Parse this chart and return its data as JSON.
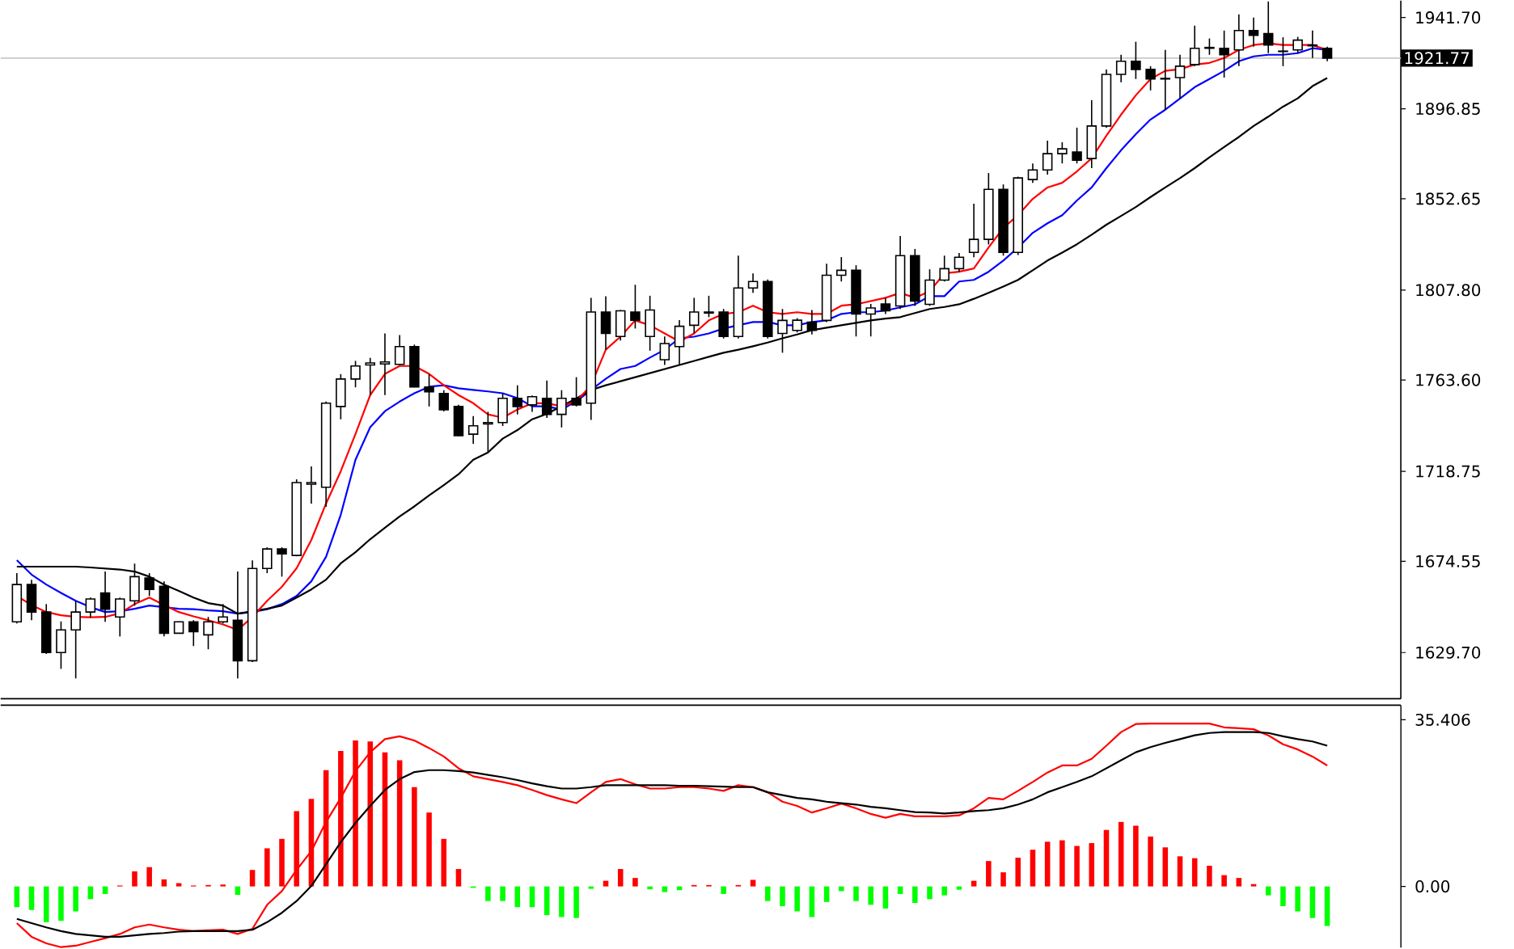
{
  "chart_data": [
    {
      "type": "candlestick",
      "tick_labels": "y",
      "categories": [
        null,
        null,
        null,
        null,
        null,
        null,
        null,
        null,
        null,
        null,
        null,
        null,
        null,
        null,
        null,
        null,
        null,
        null,
        null,
        null,
        null,
        null,
        null,
        null,
        null,
        null,
        null,
        null,
        null,
        null,
        null,
        null,
        null,
        null,
        null,
        null,
        null,
        null,
        null,
        null,
        null,
        null,
        null,
        null,
        null,
        null,
        null,
        null,
        null,
        null,
        null,
        null,
        null,
        null,
        null,
        null,
        null,
        null,
        null,
        null,
        null,
        null,
        null,
        null,
        null,
        null,
        null,
        null,
        null,
        null,
        null,
        null,
        null,
        null,
        null,
        null,
        null,
        null,
        null,
        null,
        null,
        null,
        null,
        null,
        null,
        null,
        null,
        null,
        null,
        null
      ],
      "ohlc": [
        [
          1644.8,
          1668.7,
          1644,
          1663.1
        ],
        [
          1663.1,
          1665.5,
          1645.6,
          1649.6
        ],
        [
          1649.6,
          1653.5,
          1629,
          1629.7
        ],
        [
          1629.7,
          1645,
          1621.7,
          1640.8
        ],
        [
          1640.8,
          1655,
          1617,
          1649.6
        ],
        [
          1649.6,
          1656.7,
          1647,
          1656
        ],
        [
          1659,
          1669.5,
          1644.8,
          1651
        ],
        [
          1647.2,
          1656.7,
          1637.6,
          1656
        ],
        [
          1655.1,
          1673.4,
          1652.7,
          1667
        ],
        [
          1666.3,
          1668.7,
          1657.5,
          1660.7
        ],
        [
          1662.3,
          1664.7,
          1637.6,
          1639.2
        ],
        [
          1639.2,
          1645,
          1639,
          1644.8
        ],
        [
          1644.8,
          1645.6,
          1632.9,
          1640
        ],
        [
          1638.4,
          1647.2,
          1631.3,
          1644.8
        ],
        [
          1644.8,
          1653.5,
          1644,
          1647.2
        ],
        [
          1645.6,
          1669.5,
          1617,
          1625.7
        ],
        [
          1625.7,
          1675,
          1625,
          1671
        ],
        [
          1671,
          1681.4,
          1668.7,
          1680.6
        ],
        [
          1680.6,
          1681.4,
          1667,
          1678.2
        ],
        [
          1677.4,
          1714.8,
          1677,
          1713.2
        ],
        [
          1712.4,
          1721.2,
          1702.9,
          1713.2
        ],
        [
          1710.9,
          1753,
          1701.3,
          1752.2
        ],
        [
          1750.6,
          1766.5,
          1744.3,
          1764.1
        ],
        [
          1764.1,
          1773,
          1760,
          1770.5
        ],
        [
          1771,
          1774.5,
          1756.2,
          1772
        ],
        [
          1771.5,
          1786.5,
          1756.2,
          1772.5
        ],
        [
          1771.3,
          1785.7,
          1771,
          1780
        ],
        [
          1780,
          1781,
          1760,
          1760.2
        ],
        [
          1760.2,
          1766.5,
          1750.6,
          1757.8
        ],
        [
          1757,
          1758.6,
          1748.2,
          1749
        ],
        [
          1750.6,
          1751.4,
          1736,
          1736.3
        ],
        [
          1737,
          1745.9,
          1732.3,
          1741.1
        ],
        [
          1742,
          1748,
          1728,
          1742.7
        ],
        [
          1742.7,
          1757,
          1741,
          1754.6
        ],
        [
          1754.6,
          1761,
          1746.7,
          1750.6
        ],
        [
          1751.4,
          1756,
          1748,
          1755.4
        ],
        [
          1754.6,
          1763.3,
          1745,
          1746.7
        ],
        [
          1746.7,
          1758.6,
          1740.3,
          1754.6
        ],
        [
          1754.6,
          1765,
          1750.6,
          1751.4
        ],
        [
          1752.2,
          1804,
          1744,
          1797
        ],
        [
          1797,
          1804.8,
          1778.5,
          1786.5
        ],
        [
          1785,
          1798,
          1783,
          1797.6
        ],
        [
          1797,
          1810.4,
          1788.9,
          1793
        ],
        [
          1785,
          1805,
          1778,
          1798
        ],
        [
          1773.6,
          1785,
          1771,
          1781.5
        ],
        [
          1780,
          1793,
          1771,
          1790
        ],
        [
          1790.5,
          1804,
          1786.5,
          1797
        ],
        [
          1796.5,
          1805,
          1794.5,
          1797
        ],
        [
          1797,
          1798.5,
          1784,
          1785
        ],
        [
          1785,
          1824.7,
          1784,
          1808.8
        ],
        [
          1808.8,
          1816,
          1806.4,
          1812
        ],
        [
          1812,
          1813,
          1784,
          1785
        ],
        [
          1786.5,
          1798.5,
          1777,
          1792.9
        ],
        [
          1788,
          1794,
          1787,
          1793
        ],
        [
          1792,
          1798,
          1786,
          1788
        ],
        [
          1792.9,
          1820.7,
          1792,
          1815.1
        ],
        [
          1815.1,
          1824,
          1812,
          1817.5
        ],
        [
          1817.5,
          1820,
          1785,
          1796
        ],
        [
          1796,
          1801,
          1785,
          1799
        ],
        [
          1801,
          1804,
          1796,
          1797.6
        ],
        [
          1800,
          1834.3,
          1798.5,
          1824.7
        ],
        [
          1824.7,
          1828,
          1800,
          1802.4
        ],
        [
          1800.8,
          1818,
          1800,
          1812.7
        ],
        [
          1812.7,
          1824.7,
          1812,
          1818.3
        ],
        [
          1818.3,
          1826,
          1816.7,
          1823.9
        ],
        [
          1826.3,
          1850.2,
          1823.9,
          1832.7
        ],
        [
          1832.7,
          1865.3,
          1830.2,
          1857.3
        ],
        [
          1857.3,
          1859.7,
          1824.7,
          1826.3
        ],
        [
          1826.3,
          1863.5,
          1825,
          1862.9
        ],
        [
          1862.1,
          1870,
          1860.5,
          1866.8
        ],
        [
          1866.8,
          1881.2,
          1864.5,
          1874.8
        ],
        [
          1874.8,
          1880.4,
          1870,
          1877.2
        ],
        [
          1875.6,
          1887.6,
          1870,
          1871.6
        ],
        [
          1872.4,
          1901.1,
          1867.7,
          1888.4
        ],
        [
          1888.4,
          1916.2,
          1887.6,
          1913.8
        ],
        [
          1913.8,
          1923.4,
          1909.9,
          1920.2
        ],
        [
          1920.2,
          1929.8,
          1911.5,
          1916.2
        ],
        [
          1916.2,
          1917.8,
          1905.9,
          1911.5
        ],
        [
          1911.8,
          1925.8,
          1896.3,
          1911.5
        ],
        [
          1912.2,
          1923.4,
          1901.9,
          1917.8
        ],
        [
          1918.6,
          1937.7,
          1917.8,
          1926.6
        ],
        [
          1926.6,
          1931.4,
          1923.4,
          1927
        ],
        [
          1926.6,
          1935.3,
          1912.2,
          1923.4
        ],
        [
          1925.8,
          1943.3,
          1917.8,
          1935.3
        ],
        [
          1935.3,
          1941.7,
          1927.4,
          1933
        ],
        [
          1933.8,
          1949.6,
          1924.2,
          1928.2
        ],
        [
          1925.2,
          1932,
          1917.8,
          1925
        ],
        [
          1925.8,
          1932.2,
          1924.2,
          1930.6
        ],
        [
          1928.2,
          1935.3,
          1921.8,
          1927.8
        ],
        [
          1926.6,
          1927.4,
          1920.2,
          1921.77
        ]
      ],
      "series": [
        {
          "type": "line",
          "color": "#0000ff",
          "values": [
            1675.1,
            1668,
            1663.1,
            1659,
            1655.1,
            1652,
            1649.6,
            1650,
            1651.2,
            1652.8,
            1652,
            1651.2,
            1651,
            1650.4,
            1650,
            1648.8,
            1649.6,
            1651,
            1653.5,
            1657.5,
            1664.7,
            1676.7,
            1697.4,
            1724.4,
            1740.4,
            1748.3,
            1753,
            1757.1,
            1760.3,
            1761,
            1759.5,
            1758.7,
            1758,
            1757.1,
            1754.7,
            1750.7,
            1750.7,
            1749.1,
            1753.1,
            1758.7,
            1764.2,
            1769,
            1770.5,
            1774.6,
            1778.5,
            1784.1,
            1784.9,
            1786.5,
            1788.9,
            1790.5,
            1792.1,
            1792.1,
            1790.5,
            1790.5,
            1792.1,
            1792.9,
            1796.1,
            1796.9,
            1796.9,
            1797.7,
            1799.3,
            1800.8,
            1804.8,
            1804.8,
            1812,
            1812.8,
            1816.8,
            1822.3,
            1828.7,
            1835.9,
            1840.6,
            1844.6,
            1851.8,
            1858.2,
            1867.7,
            1876.5,
            1884.4,
            1891.6,
            1896.4,
            1901.9,
            1907.5,
            1911.5,
            1915.5,
            1920.2,
            1922.6,
            1923.4,
            1923.4,
            1924.2,
            1926.6,
            1925.8
          ]
        },
        {
          "type": "line",
          "color": "#000000",
          "values": [
            1671.9,
            1671.9,
            1671.9,
            1671.9,
            1671.9,
            1671.5,
            1671,
            1670.5,
            1669.5,
            1667,
            1663.1,
            1660,
            1656.7,
            1654,
            1652.8,
            1648.8,
            1650,
            1651.2,
            1652.8,
            1656.7,
            1660.7,
            1665.5,
            1673.5,
            1679,
            1685.4,
            1691,
            1696.6,
            1701.5,
            1706.9,
            1712,
            1717.3,
            1724.4,
            1728,
            1734.8,
            1739,
            1744.3,
            1747,
            1750.7,
            1754.5,
            1758.7,
            1761,
            1763,
            1765,
            1767,
            1769,
            1771,
            1773,
            1775,
            1777,
            1778.5,
            1780.2,
            1782,
            1784.1,
            1786,
            1788.1,
            1789.3,
            1790.5,
            1791.7,
            1792.9,
            1793.8,
            1794.5,
            1796.5,
            1798.5,
            1799.5,
            1800.8,
            1803.5,
            1806.4,
            1809.5,
            1812.8,
            1817.5,
            1822.3,
            1826.2,
            1830.3,
            1835,
            1839.9,
            1844.2,
            1848.6,
            1853.5,
            1858.2,
            1862.8,
            1867.7,
            1873,
            1878.1,
            1883,
            1888.4,
            1893,
            1897.9,
            1902,
            1908,
            1912
          ]
        },
        {
          "type": "line",
          "color": "#ff0000",
          "values": [
            1657.5,
            1653,
            1649.6,
            1648,
            1647.2,
            1647,
            1647.2,
            1649,
            1653.5,
            1656.7,
            1653,
            1649.6,
            1647.5,
            1645.6,
            1643.5,
            1640.8,
            1647.2,
            1655.1,
            1662,
            1671.1,
            1685,
            1702.9,
            1718.8,
            1737.1,
            1756.2,
            1766.6,
            1770.5,
            1770.5,
            1766.6,
            1761,
            1756.2,
            1752.2,
            1746.7,
            1745.1,
            1749.1,
            1752.2,
            1752.2,
            1750.7,
            1753.1,
            1761,
            1778.5,
            1784.9,
            1792.9,
            1790.5,
            1786.5,
            1782.5,
            1786.5,
            1792.9,
            1796.1,
            1796.9,
            1800.1,
            1796.9,
            1796.1,
            1796.9,
            1796.1,
            1796.1,
            1800.1,
            1800.8,
            1802.4,
            1804,
            1806.4,
            1804,
            1807.2,
            1816,
            1816.8,
            1818.4,
            1828.7,
            1838.3,
            1844.6,
            1852.6,
            1858.2,
            1860.5,
            1866.1,
            1872.5,
            1883.6,
            1894,
            1903.5,
            1911.5,
            1915.5,
            1916.3,
            1918.6,
            1919.4,
            1921.8,
            1925.8,
            1928.2,
            1929,
            1928.2,
            1928.2,
            1928.2,
            1925.8
          ]
        }
      ],
      "ylim": [
        1607,
        1950
      ],
      "yticks": [
        {
          "value": 1629.7,
          "label": "1629.70"
        },
        {
          "value": 1674.55,
          "label": "1674.55"
        },
        {
          "value": 1718.75,
          "label": "1718.75"
        },
        {
          "value": 1763.6,
          "label": "1763.60"
        },
        {
          "value": 1807.8,
          "label": "1807.80"
        },
        {
          "value": 1852.65,
          "label": "1852.65"
        },
        {
          "value": 1896.85,
          "label": "1896.85"
        },
        {
          "value": 1941.7,
          "label": "1941.70"
        }
      ],
      "ref_lines": [
        {
          "axis": "y",
          "value": 1921.77,
          "label": "1921.77",
          "color": "#c8c8c8"
        }
      ]
    },
    {
      "type": "bar",
      "tick_labels": "y",
      "categories": [
        null,
        null,
        null,
        null,
        null,
        null,
        null,
        null,
        null,
        null,
        null,
        null,
        null,
        null,
        null,
        null,
        null,
        null,
        null,
        null,
        null,
        null,
        null,
        null,
        null,
        null,
        null,
        null,
        null,
        null,
        null,
        null,
        null,
        null,
        null,
        null,
        null,
        null,
        null,
        null,
        null,
        null,
        null,
        null,
        null,
        null,
        null,
        null,
        null,
        null,
        null,
        null,
        null,
        null,
        null,
        null,
        null,
        null,
        null,
        null,
        null,
        null,
        null,
        null,
        null,
        null,
        null,
        null,
        null,
        null,
        null,
        null,
        null,
        null,
        null,
        null,
        null,
        null,
        null,
        null,
        null,
        null,
        null,
        null,
        null,
        null,
        null,
        null,
        null,
        null
      ],
      "series": [
        {
          "type": "bar",
          "values": [
            -4.4,
            -5.0,
            -7.6,
            -7.3,
            -5.3,
            -2.7,
            -1.6,
            0.2,
            3.2,
            4.1,
            1.5,
            0.7,
            0.2,
            0.3,
            0.4,
            -1.8,
            3.5,
            8.1,
            10.1,
            16,
            18.6,
            24.7,
            28.8,
            31,
            30.8,
            28.5,
            26.8,
            21.1,
            15.7,
            10.1,
            3.7,
            -0.3,
            -3.1,
            -3.1,
            -4.4,
            -4.4,
            -6.1,
            -6.5,
            -6.7,
            -0.5,
            1.2,
            3.7,
            1.8,
            -0.6,
            -1.2,
            -0.8,
            0.3,
            0.3,
            -1.6,
            0.3,
            1.4,
            -3.1,
            -4.2,
            -5.3,
            -6.5,
            -3.3,
            -1.0,
            -3.1,
            -3.9,
            -4.7,
            -1.6,
            -3.5,
            -2.7,
            -1.9,
            -0.7,
            1.2,
            5.4,
            3.0,
            6.1,
            7.8,
            9.5,
            9.8,
            8.6,
            9.2,
            12,
            13.7,
            12.9,
            10.6,
            8.3,
            6.4,
            6.0,
            4.4,
            2.4,
            1.8,
            0.5,
            -1.9,
            -4.2,
            -5.3,
            -6.7,
            -8.4
          ],
          "colors": [
            "#00ff00",
            "#00ff00",
            "#00ff00",
            "#00ff00",
            "#00ff00",
            "#00ff00",
            "#00ff00",
            "#ff0000",
            "#ff0000",
            "#ff0000",
            "#ff0000",
            "#ff0000",
            "#ff0000",
            "#ff0000",
            "#ff0000",
            "#00ff00",
            "#ff0000",
            "#ff0000",
            "#ff0000",
            "#ff0000",
            "#ff0000",
            "#ff0000",
            "#ff0000",
            "#ff0000",
            "#ff0000",
            "#ff0000",
            "#ff0000",
            "#ff0000",
            "#ff0000",
            "#ff0000",
            "#ff0000",
            "#00ff00",
            "#00ff00",
            "#00ff00",
            "#00ff00",
            "#00ff00",
            "#00ff00",
            "#00ff00",
            "#00ff00",
            "#00ff00",
            "#ff0000",
            "#ff0000",
            "#ff0000",
            "#00ff00",
            "#00ff00",
            "#00ff00",
            "#ff0000",
            "#ff0000",
            "#00ff00",
            "#ff0000",
            "#ff0000",
            "#00ff00",
            "#00ff00",
            "#00ff00",
            "#00ff00",
            "#00ff00",
            "#00ff00",
            "#00ff00",
            "#00ff00",
            "#00ff00",
            "#00ff00",
            "#00ff00",
            "#00ff00",
            "#00ff00",
            "#00ff00",
            "#ff0000",
            "#ff0000",
            "#ff0000",
            "#ff0000",
            "#ff0000",
            "#ff0000",
            "#ff0000",
            "#ff0000",
            "#ff0000",
            "#ff0000",
            "#ff0000",
            "#ff0000",
            "#ff0000",
            "#ff0000",
            "#ff0000",
            "#ff0000",
            "#ff0000",
            "#ff0000",
            "#ff0000",
            "#ff0000",
            "#00ff00",
            "#00ff00",
            "#00ff00",
            "#00ff00",
            "#00ff00"
          ]
        },
        {
          "type": "line",
          "color": "#ff0000",
          "values": [
            -7.8,
            -10.7,
            -12.1,
            -12.9,
            -12.6,
            -11.8,
            -11,
            -10.1,
            -8.7,
            -8.1,
            -8.7,
            -9.2,
            -9.5,
            -9.3,
            -9.2,
            -10.1,
            -9,
            -3.9,
            -1,
            3.5,
            7.5,
            13.7,
            18.8,
            24.5,
            28.5,
            31.3,
            31.9,
            31,
            29.4,
            27.6,
            25.1,
            23.4,
            22.8,
            22.2,
            21.5,
            20.5,
            19.4,
            18.5,
            17.7,
            20,
            22.2,
            22.8,
            21.7,
            20.8,
            20.8,
            21.1,
            21.1,
            20.8,
            20.3,
            21.5,
            21.1,
            20,
            18,
            17.1,
            15.7,
            16.6,
            17.6,
            16.6,
            15.4,
            14.6,
            15.4,
            14.9,
            14.9,
            14.9,
            15.1,
            16.6,
            18.8,
            18.5,
            20.3,
            22.2,
            24.2,
            25.7,
            25.7,
            27.1,
            29.9,
            32.8,
            34.5,
            34.6,
            34.6,
            34.6,
            34.6,
            34.6,
            33.8,
            33.6,
            33.4,
            32.1,
            30.2,
            29.1,
            27.6,
            25.7
          ]
        },
        {
          "type": "line",
          "color": "#000000",
          "values": [
            -6.9,
            -7.8,
            -8.7,
            -9.5,
            -10.1,
            -10.4,
            -10.7,
            -10.7,
            -10.4,
            -10.1,
            -9.9,
            -9.6,
            -9.5,
            -9.5,
            -9.5,
            -9.5,
            -9.2,
            -7.6,
            -5.6,
            -3.1,
            0.1,
            4.7,
            9.4,
            13.5,
            17.1,
            20.5,
            22.8,
            24.3,
            24.7,
            24.7,
            24.5,
            24.2,
            23.7,
            23.2,
            22.6,
            21.9,
            21.3,
            20.8,
            20.8,
            21.1,
            21.5,
            21.5,
            21.5,
            21.5,
            21.5,
            21.4,
            21.4,
            21.3,
            21.2,
            21.1,
            21.1,
            20,
            19.4,
            18.8,
            18.5,
            18,
            17.7,
            17.4,
            16.9,
            16.6,
            16.2,
            15.8,
            15.7,
            15.5,
            15.7,
            16,
            16.2,
            16.6,
            17.4,
            18.5,
            20,
            21.1,
            22.2,
            23.4,
            25.1,
            26.8,
            28.5,
            29.6,
            30.5,
            31.3,
            32.1,
            32.6,
            32.8,
            32.8,
            32.8,
            32.6,
            31.9,
            31.3,
            30.8,
            29.9
          ]
        }
      ],
      "ylim": [
        -13,
        38.5
      ],
      "yticks": [
        {
          "value": 35.406,
          "label": "35.406"
        },
        {
          "value": 0,
          "label": "0.00"
        }
      ]
    }
  ]
}
